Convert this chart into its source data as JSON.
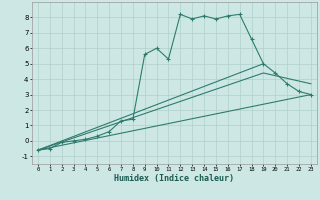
{
  "xlabel": "Humidex (Indice chaleur)",
  "bg_color": "#cde8e4",
  "line_color": "#2e7b6e",
  "grid_color": "#b0d0cc",
  "xlim": [
    -0.5,
    23.5
  ],
  "ylim": [
    -1.5,
    9.0
  ],
  "xticks": [
    0,
    1,
    2,
    3,
    4,
    5,
    6,
    7,
    8,
    9,
    10,
    11,
    12,
    13,
    14,
    15,
    16,
    17,
    18,
    19,
    20,
    21,
    22,
    23
  ],
  "yticks": [
    -1,
    0,
    1,
    2,
    3,
    4,
    5,
    6,
    7,
    8
  ],
  "line1_x": [
    0,
    1,
    2,
    3,
    4,
    5,
    6,
    7,
    8,
    9,
    10,
    11,
    12,
    13,
    14,
    15,
    16,
    17,
    18,
    19,
    20,
    21,
    22,
    23
  ],
  "line1_y": [
    -0.6,
    -0.5,
    -0.1,
    0.0,
    0.1,
    0.3,
    0.6,
    1.3,
    1.4,
    5.6,
    6.0,
    5.3,
    8.2,
    7.9,
    8.1,
    7.9,
    8.1,
    8.2,
    6.6,
    5.0,
    4.4,
    3.7,
    3.2,
    3.0
  ],
  "line2_x": [
    0,
    23
  ],
  "line2_y": [
    -0.6,
    3.0
  ],
  "line3_x": [
    0,
    19,
    23
  ],
  "line3_y": [
    -0.6,
    4.4,
    3.7
  ],
  "line4_x": [
    0,
    19
  ],
  "line4_y": [
    -0.6,
    5.0
  ]
}
